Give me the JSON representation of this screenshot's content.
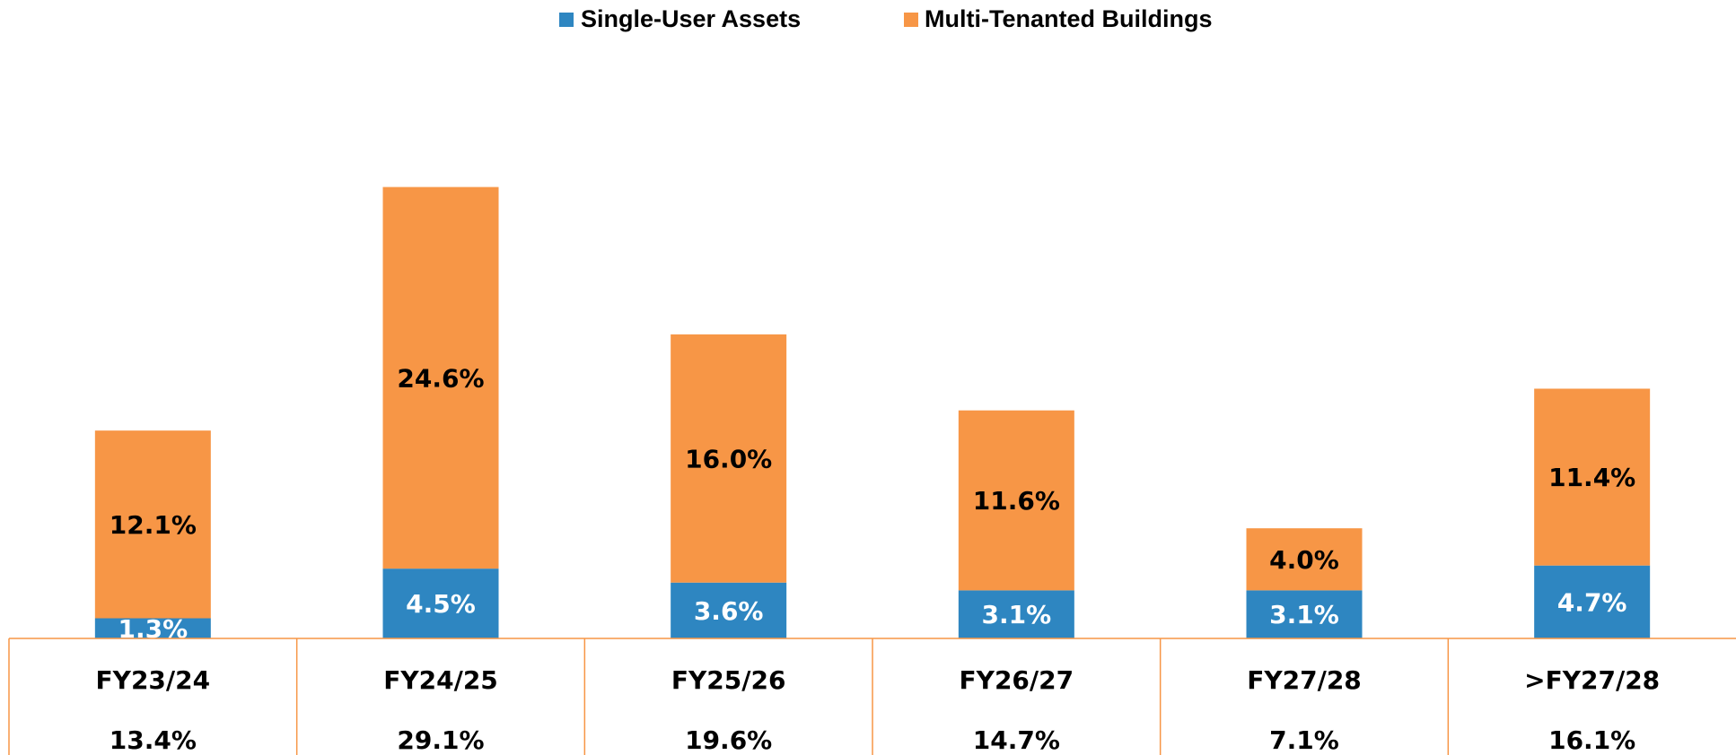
{
  "chart_data": {
    "type": "stacked-bar",
    "categories": [
      "FY23/24",
      "FY24/25",
      "FY25/26",
      "FY26/27",
      "FY27/28",
      ">FY27/28"
    ],
    "series": [
      {
        "name": "Single-User Assets",
        "color": "#2e86c1",
        "values": [
          1.3,
          4.5,
          3.6,
          3.1,
          3.1,
          4.7
        ],
        "value_labels": [
          "1.3%",
          "4.5%",
          "3.6%",
          "3.1%",
          "3.1%",
          "4.7%"
        ]
      },
      {
        "name": "Multi-Tenanted Buildings",
        "color": "#f79646",
        "values": [
          12.1,
          24.6,
          16.0,
          11.6,
          4.0,
          11.4
        ],
        "value_labels": [
          "12.1%",
          "24.6%",
          "16.0%",
          "11.6%",
          "4.0%",
          "11.4%"
        ]
      }
    ],
    "totals": [
      13.4,
      29.1,
      19.6,
      14.7,
      7.1,
      16.1
    ],
    "totals_labels": [
      "13.4%",
      "29.1%",
      "19.6%",
      "14.7%",
      "7.1%",
      "16.1%"
    ],
    "ylim": [
      0,
      30
    ],
    "legend": "top"
  }
}
